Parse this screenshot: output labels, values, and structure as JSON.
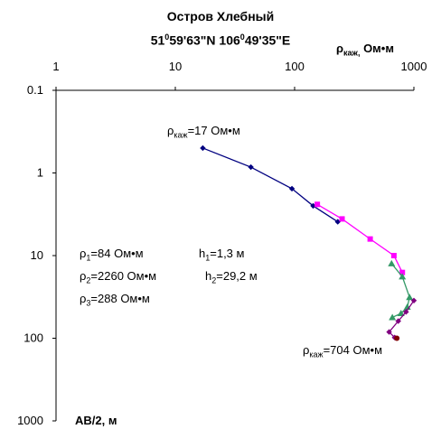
{
  "chart_data": {
    "type": "line",
    "title_line1": "Остров Хлебный",
    "title_line2": {
      "lat_deg": "51",
      "deg_sign": "0",
      "lat_rest": "59'63\"N 106",
      "deg_sign2": "0",
      "lon_rest": "49'35\"E"
    },
    "top_axis_label": {
      "symbol": "ρ",
      "sub": "каж,",
      "unit": " Ом•м"
    },
    "left_axis_label": "AB/2, м",
    "x_scale": "log",
    "y_scale": "log",
    "y_inverted": true,
    "xlim": [
      1,
      1000
    ],
    "ylim": [
      0.1,
      1000
    ],
    "x_ticks": [
      1,
      10,
      100,
      1000
    ],
    "x_tick_labels": [
      "1",
      "10",
      "100",
      "1000"
    ],
    "y_ticks": [
      0.1,
      1,
      10,
      100,
      1000
    ],
    "y_tick_labels": [
      "0.1",
      "1",
      "10",
      "100",
      "1000"
    ],
    "grid": false,
    "series": [
      {
        "color": "#000080",
        "marker": "diamond",
        "x": [
          17,
          43,
          95,
          143,
          230
        ],
        "y": [
          0.5,
          0.85,
          1.55,
          2.5,
          3.9
        ]
      },
      {
        "color": "#ff00ff",
        "marker": "square",
        "x": [
          155,
          250,
          430,
          680,
          800
        ],
        "y": [
          2.4,
          3.6,
          6.3,
          10,
          16
        ]
      },
      {
        "color": "#339966",
        "marker": "triangle",
        "x": [
          650,
          800,
          920,
          880,
          780,
          660
        ],
        "y": [
          12.5,
          18,
          32,
          42,
          50,
          56
        ]
      },
      {
        "color": "#800080",
        "marker": "diamond",
        "x": [
          1000,
          860,
          740,
          620,
          690
        ],
        "y": [
          35,
          48,
          62,
          84,
          98
        ]
      },
      {
        "color": "#800000",
        "marker": "circle",
        "x": [
          720
        ],
        "y": [
          100
        ]
      }
    ],
    "annotations": {
      "start": {
        "symbol": "ρ",
        "sub": "каж",
        "text": "=17 Ом•м"
      },
      "end": {
        "symbol": "ρ",
        "sub": "каж",
        "text": "=704 Ом•м"
      },
      "p1": {
        "symbol": "ρ",
        "sub": "1",
        "text": "=84 Ом•м"
      },
      "h1": {
        "symbol": "h",
        "sub": "1",
        "text": "=1,3 м"
      },
      "p2": {
        "symbol": "ρ",
        "sub": "2",
        "text": "=2260 Ом•м"
      },
      "h2": {
        "symbol": "h",
        "sub": "2",
        "text": "=29,2 м"
      },
      "p3": {
        "symbol": "ρ",
        "sub": "3",
        "text": "=288 Ом•м"
      }
    }
  }
}
